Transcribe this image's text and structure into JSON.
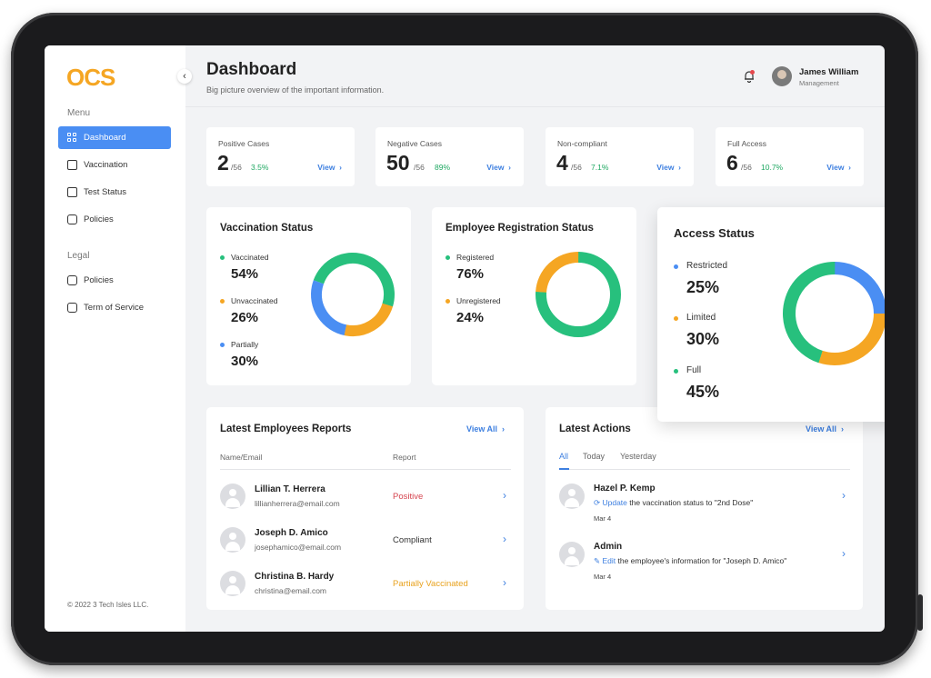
{
  "app": {
    "logo": "OCS",
    "collapse_icon": "chevron-left-icon"
  },
  "sidebar": {
    "menu_label": "Menu",
    "menu_items": [
      {
        "label": "Dashboard",
        "icon": "grid-icon",
        "active": true
      },
      {
        "label": "Vaccination",
        "icon": "calendar-icon"
      },
      {
        "label": "Test Status",
        "icon": "test-icon"
      },
      {
        "label": "Policies",
        "icon": "clipboard-icon"
      }
    ],
    "legal_label": "Legal",
    "legal_items": [
      {
        "label": "Policies",
        "icon": "clipboard-icon"
      },
      {
        "label": "Term of Service",
        "icon": "clipboard-icon"
      }
    ],
    "footer": "© 2022 3 Tech Isles LLC."
  },
  "header": {
    "title": "Dashboard",
    "subtitle": "Big picture overview of the important information.",
    "user_name": "James William",
    "user_role": "Management"
  },
  "stats": [
    {
      "label": "Positive Cases",
      "value": "2",
      "total": "/56",
      "pct": "3.5%",
      "view": "View"
    },
    {
      "label": "Negative Cases",
      "value": "50",
      "total": "/56",
      "pct": "89%",
      "view": "View"
    },
    {
      "label": "Non-compliant",
      "value": "4",
      "total": "/56",
      "pct": "7.1%",
      "view": "View"
    },
    {
      "label": "Full Access",
      "value": "6",
      "total": "/56",
      "pct": "10.7%",
      "view": "View"
    }
  ],
  "colors": {
    "green": "#27c07d",
    "orange": "#f5a623",
    "blue": "#4a8ef3"
  },
  "vaccination": {
    "title": "Vaccination Status",
    "items": [
      {
        "label": "Vaccinated",
        "value": "54%",
        "pct": 54,
        "color": "#27c07d"
      },
      {
        "label": "Unvaccinated",
        "value": "26%",
        "pct": 26,
        "color": "#f5a623"
      },
      {
        "label": "Partially",
        "value": "30%",
        "pct": 30,
        "color": "#4a8ef3"
      }
    ]
  },
  "registration": {
    "title": "Employee Registration Status",
    "items": [
      {
        "label": "Registered",
        "value": "76%",
        "pct": 76,
        "color": "#27c07d"
      },
      {
        "label": "Unregistered",
        "value": "24%",
        "pct": 24,
        "color": "#f5a623"
      }
    ]
  },
  "access": {
    "title": "Access Status",
    "items": [
      {
        "label": "Restricted",
        "value": "25%",
        "pct": 25,
        "color": "#4a8ef3"
      },
      {
        "label": "Limited",
        "value": "30%",
        "pct": 30,
        "color": "#f5a623"
      },
      {
        "label": "Full",
        "value": "45%",
        "pct": 45,
        "color": "#27c07d"
      }
    ]
  },
  "reports": {
    "title": "Latest Employees Reports",
    "view_all": "View All",
    "col_name": "Name/Email",
    "col_report": "Report",
    "rows": [
      {
        "name": "Lillian T. Herrera",
        "email": "lillianherrera@email.com",
        "report": "Positive",
        "color": "#d64550"
      },
      {
        "name": "Joseph D. Amico",
        "email": "josephamico@email.com",
        "report": "Compliant",
        "color": "#333333"
      },
      {
        "name": "Christina B. Hardy",
        "email": "christina@email.com",
        "report": "Partially Vaccinated",
        "color": "#e8a21e"
      }
    ]
  },
  "actions": {
    "title": "Latest Actions",
    "view_all": "View All",
    "tabs": [
      "All",
      "Today",
      "Yesterday"
    ],
    "items": [
      {
        "name": "Hazel P. Kemp",
        "verb": "Update",
        "rest": " the vaccination status to \"2nd Dose\"",
        "date": "Mar 4",
        "icon": "refresh-icon"
      },
      {
        "name": "Admin",
        "verb": "Edit",
        "rest": " the employee's information for \"Joseph D. Amico\"",
        "date": "Mar 4",
        "icon": "pencil-icon"
      }
    ]
  }
}
